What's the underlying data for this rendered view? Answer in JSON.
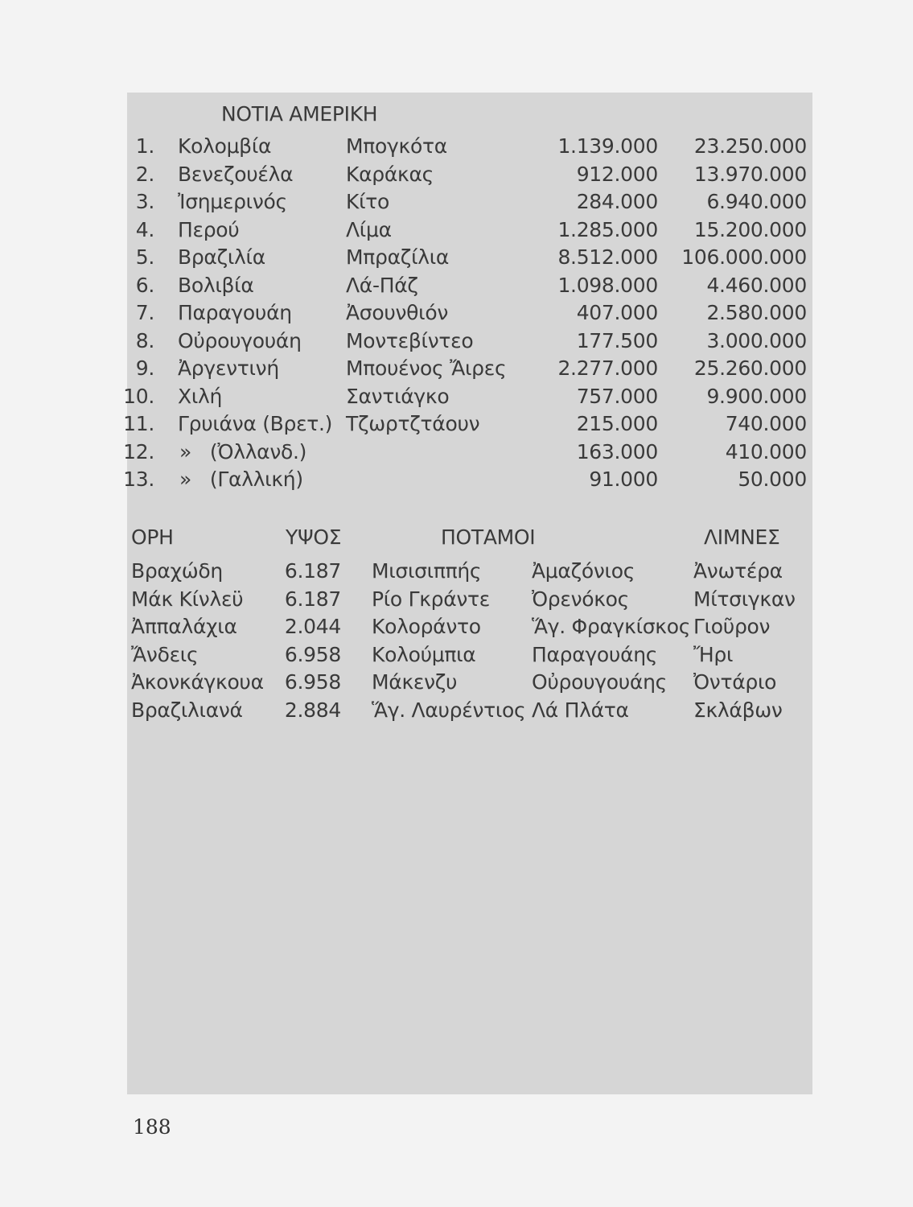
{
  "countries_table": {
    "title": "ΝΟΤΙΑ ΑΜΕΡΙΚΗ",
    "rows": [
      {
        "num": "1.",
        "country": "Κολομβία",
        "capital": "Μπογκότα",
        "area": "1.139.000",
        "population": "23.250.000"
      },
      {
        "num": "2.",
        "country": "Βενεζουέλα",
        "capital": "Καράκας",
        "area": "912.000",
        "population": "13.970.000"
      },
      {
        "num": "3.",
        "country": "Ἰσημερινός",
        "capital": "Κίτο",
        "area": "284.000",
        "population": "6.940.000"
      },
      {
        "num": "4.",
        "country": "Περού",
        "capital": "Λίμα",
        "area": "1.285.000",
        "population": "15.200.000"
      },
      {
        "num": "5.",
        "country": "Βραζιλία",
        "capital": "Μπραζίλια",
        "area": "8.512.000",
        "population": "106.000.000"
      },
      {
        "num": "6.",
        "country": "Βολιβία",
        "capital": "Λά-Πάζ",
        "area": "1.098.000",
        "population": "4.460.000"
      },
      {
        "num": "7.",
        "country": "Παραγουάη",
        "capital": "Ἀσουνθιόν",
        "area": "407.000",
        "population": "2.580.000"
      },
      {
        "num": "8.",
        "country": "Οὐρουγουάη",
        "capital": "Μοντεβίντεο",
        "area": "177.500",
        "population": "3.000.000"
      },
      {
        "num": "9.",
        "country": "Ἀργεντινή",
        "capital": "Μπουένος Ἄιρες",
        "area": "2.277.000",
        "population": "25.260.000"
      },
      {
        "num": "10.",
        "country": "Χιλή",
        "capital": "Σαντιάγκο",
        "area": "757.000",
        "population": "9.900.000"
      },
      {
        "num": "11.",
        "country": "Γρυιάνα (Βρετ.)",
        "capital": "Τζωρτζτάουν",
        "area": "215.000",
        "population": "740.000"
      },
      {
        "num": "12.",
        "country": "»   (Ὀλλανδ.)",
        "capital": "",
        "area": "163.000",
        "population": "410.000"
      },
      {
        "num": "13.",
        "country": "»   (Γαλλική)",
        "capital": "",
        "area": "91.000",
        "population": "50.000"
      }
    ]
  },
  "geo_table": {
    "headers": {
      "mountains": "ΟΡΗ",
      "height": "ΥΨΟΣ",
      "rivers": "ΠΟΤΑΜΟΙ",
      "lakes": "ΛΙΜΝΕΣ"
    },
    "rows": [
      {
        "mountain": "Βραχώδη",
        "height": "6.187",
        "river1": "Μισισιππής",
        "river2": "Ἀμαζόνιος",
        "lake": "Ἀνωτέρα"
      },
      {
        "mountain": "Μάκ Κίνλεϋ",
        "height": "6.187",
        "river1": "Ρίο Γκράντε",
        "river2": "Ὀρενόκος",
        "lake": "Μίτσιγκαν"
      },
      {
        "mountain": "Ἀππαλάχια",
        "height": "2.044",
        "river1": "Κολοράντο",
        "river2": "Ἅγ. Φραγκίσκος",
        "lake": "Γιοῦρον"
      },
      {
        "mountain": "Ἄνδεις",
        "height": "6.958",
        "river1": "Κολούμπια",
        "river2": "Παραγουάης",
        "lake": "Ἤρι"
      },
      {
        "mountain": "Ἀκονκάγκουα",
        "height": "6.958",
        "river1": "Μάκενζυ",
        "river2": "Οὐρουγουάης",
        "lake": "Ὀντάριο"
      },
      {
        "mountain": "Βραζιλιανά",
        "height": "2.884",
        "river1": "Ἅγ. Λαυρέντιος",
        "river2": "Λά Πλάτα",
        "lake": "Σκλάβων"
      }
    ]
  },
  "page_number": "188"
}
